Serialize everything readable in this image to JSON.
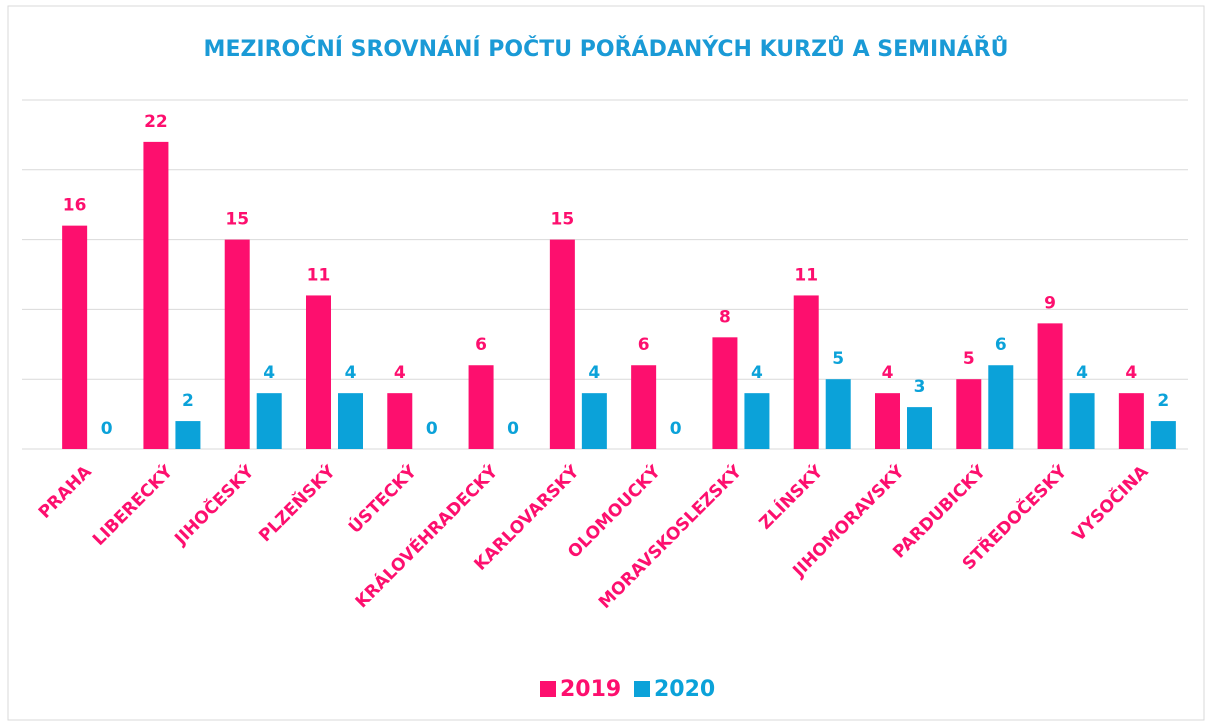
{
  "chart_data": {
    "type": "bar",
    "title": "MEZIROČNÍ SROVNÁNÍ POČTU POŘÁDANÝCH KURZŮ A SEMINÁŘŮ",
    "categories": [
      "PRAHA",
      "LIBERECKÝ",
      "JIHOČESKÝ",
      "PLZEŇSKÝ",
      "ÚSTECKÝ",
      "KRÁLOVÉHRADECKÝ",
      "KARLOVARSKÝ",
      "OLOMOUCKÝ",
      "MORAVSKOSLEZSKÝ",
      "ZLÍNSKÝ",
      "JIHOMORAVSKÝ",
      "PARDUBICKÝ",
      "STŘEDOČESKÝ",
      "VYSOČINA"
    ],
    "series": [
      {
        "name": "2019",
        "color": "#fd0f6e",
        "values": [
          16,
          22,
          15,
          11,
          4,
          6,
          15,
          6,
          8,
          11,
          4,
          5,
          9,
          4
        ]
      },
      {
        "name": "2020",
        "color": "#0ba2d9",
        "values": [
          0,
          2,
          4,
          4,
          0,
          0,
          4,
          0,
          4,
          5,
          3,
          6,
          4,
          2
        ]
      }
    ],
    "ylim": [
      0,
      25
    ],
    "yticks": [
      0,
      5,
      10,
      15,
      20,
      25
    ],
    "grid": true,
    "legend": "bottom"
  }
}
